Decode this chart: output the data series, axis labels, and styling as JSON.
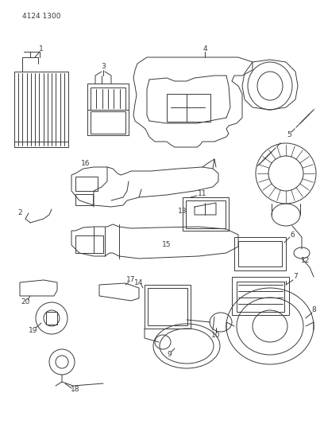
{
  "title": "4124 1300",
  "bg_color": "#ffffff",
  "line_color": "#3a3a3a",
  "figsize": [
    4.08,
    5.33
  ],
  "dpi": 100
}
